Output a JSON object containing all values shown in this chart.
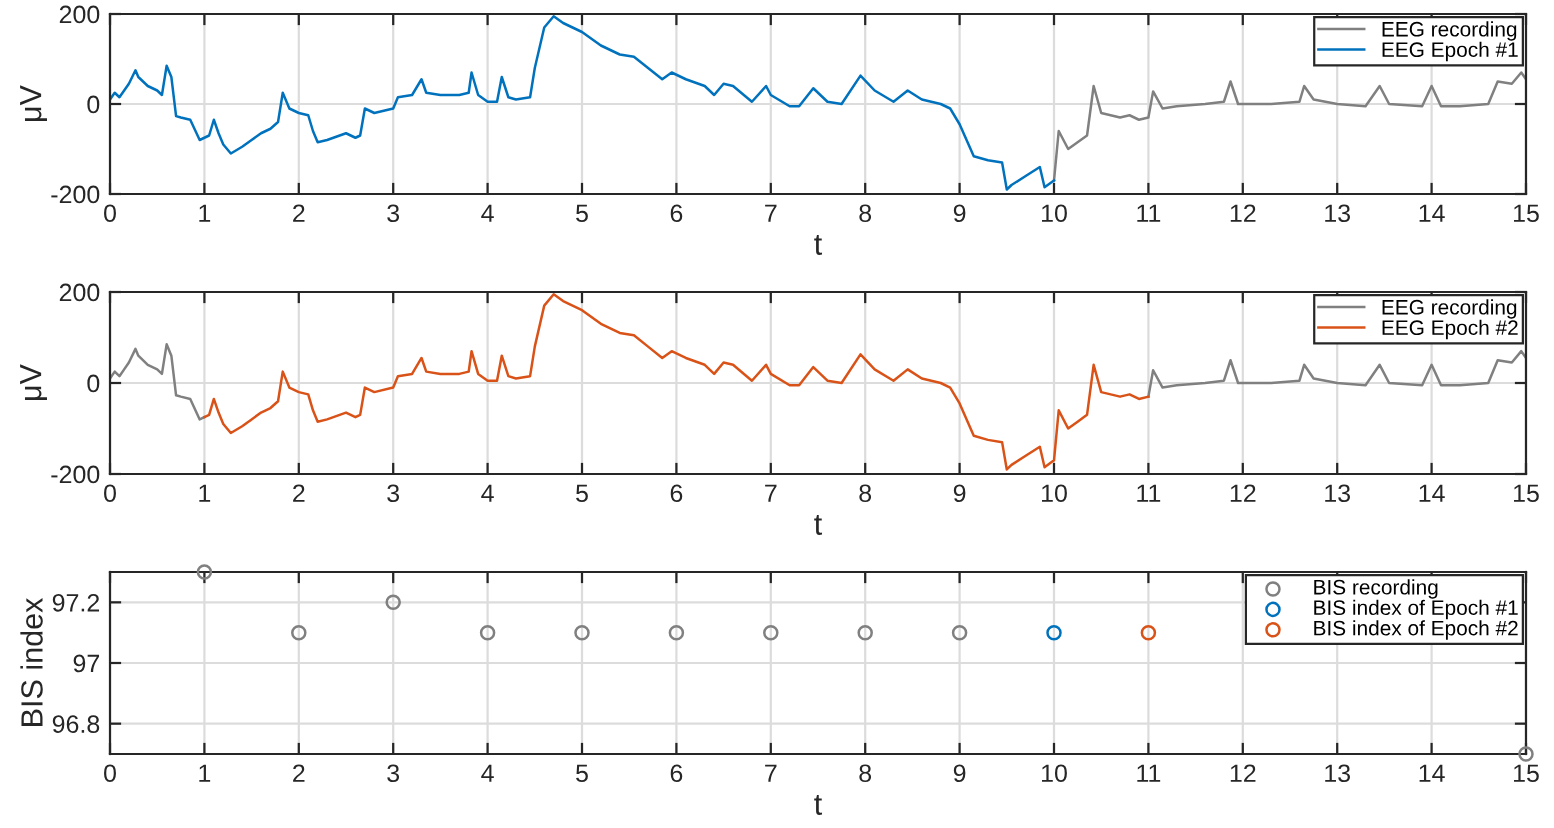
{
  "chart_data": [
    {
      "type": "line",
      "xlabel": "t",
      "ylabel": "μV",
      "xlim": [
        0,
        15
      ],
      "ylim": [
        -200,
        200
      ],
      "xticks": [
        0,
        1,
        2,
        3,
        4,
        5,
        6,
        7,
        8,
        9,
        10,
        11,
        12,
        13,
        14,
        15
      ],
      "yticks": [
        -200,
        0,
        200
      ],
      "grid": true,
      "legend": "top right",
      "series": [
        {
          "name": "EEG recording",
          "color": "#808080",
          "x": [
            10.0,
            10.05,
            10.15,
            10.25,
            10.35,
            10.42,
            10.5,
            10.7,
            10.8,
            10.9,
            11.0,
            11.05,
            11.15,
            11.3,
            11.6,
            11.8,
            11.87,
            11.95,
            12.3,
            12.6,
            12.65,
            12.75,
            13.0,
            13.3,
            13.45,
            13.55,
            13.9,
            14.0,
            14.1,
            14.3,
            14.6,
            14.7,
            14.85,
            14.95,
            15.0
          ],
          "values": [
            -170,
            -60,
            -100,
            -85,
            -70,
            40,
            -20,
            -30,
            -25,
            -35,
            -30,
            28,
            -10,
            -5,
            0,
            5,
            50,
            0,
            0,
            5,
            40,
            10,
            0,
            -5,
            40,
            0,
            -5,
            40,
            -5,
            -5,
            0,
            50,
            45,
            70,
            55
          ]
        },
        {
          "name": "EEG Epoch #1",
          "color": "#0072bd",
          "x": [
            0,
            0.05,
            0.1,
            0.15,
            0.2,
            0.27,
            0.3,
            0.4,
            0.5,
            0.55,
            0.6,
            0.65,
            0.7,
            0.75,
            0.85,
            0.95,
            1.0,
            1.05,
            1.1,
            1.15,
            1.2,
            1.28,
            1.4,
            1.5,
            1.6,
            1.7,
            1.78,
            1.83,
            1.9,
            2.0,
            2.1,
            2.15,
            2.2,
            2.3,
            2.5,
            2.6,
            2.65,
            2.7,
            2.8,
            3.0,
            3.05,
            3.2,
            3.3,
            3.35,
            3.5,
            3.7,
            3.8,
            3.83,
            3.9,
            4.0,
            4.1,
            4.15,
            4.22,
            4.3,
            4.45,
            4.5,
            4.6,
            4.7,
            4.8,
            5.0,
            5.2,
            5.4,
            5.55,
            5.7,
            5.85,
            5.95,
            6.1,
            6.3,
            6.4,
            6.5,
            6.6,
            6.8,
            6.95,
            7.0,
            7.2,
            7.3,
            7.45,
            7.6,
            7.75,
            7.95,
            8.1,
            8.3,
            8.45,
            8.6,
            8.8,
            8.9,
            9.0,
            9.15,
            9.3,
            9.45,
            9.5,
            9.55,
            9.7,
            9.85,
            9.9,
            10.0
          ],
          "values": [
            10,
            25,
            15,
            30,
            45,
            75,
            60,
            40,
            30,
            20,
            85,
            60,
            -27,
            -30,
            -35,
            -80,
            -75,
            -70,
            -35,
            -65,
            -90,
            -110,
            -95,
            -80,
            -65,
            -55,
            -40,
            25,
            -10,
            -20,
            -25,
            -60,
            -85,
            -80,
            -65,
            -75,
            -70,
            -10,
            -20,
            -10,
            15,
            20,
            55,
            25,
            20,
            20,
            25,
            70,
            20,
            5,
            5,
            60,
            15,
            10,
            15,
            80,
            170,
            195,
            180,
            160,
            130,
            110,
            105,
            80,
            55,
            70,
            55,
            40,
            20,
            45,
            40,
            5,
            40,
            20,
            -5,
            -5,
            35,
            5,
            0,
            63,
            30,
            5,
            30,
            10,
            0,
            -10,
            -45,
            -116,
            -125,
            -130,
            -190,
            -180,
            -160,
            -140,
            -185,
            -170
          ]
        }
      ]
    },
    {
      "type": "line",
      "xlabel": "t",
      "ylabel": "μV",
      "xlim": [
        0,
        15
      ],
      "ylim": [
        -200,
        200
      ],
      "xticks": [
        0,
        1,
        2,
        3,
        4,
        5,
        6,
        7,
        8,
        9,
        10,
        11,
        12,
        13,
        14,
        15
      ],
      "yticks": [
        -200,
        0,
        200
      ],
      "grid": true,
      "legend": "top right",
      "series": [
        {
          "name": "EEG recording",
          "color": "#808080",
          "x": [
            0,
            0.05,
            0.1,
            0.15,
            0.2,
            0.27,
            0.3,
            0.4,
            0.5,
            0.55,
            0.6,
            0.65,
            0.7,
            0.75,
            0.85,
            0.95,
            1.0,
            6.0,
            11.0,
            11.05,
            11.15,
            11.3,
            11.6,
            11.8,
            11.87,
            11.95,
            12.3,
            12.6,
            12.65,
            12.75,
            13.0,
            13.3,
            13.45,
            13.55,
            13.9,
            14.0,
            14.1,
            14.3,
            14.6,
            14.7,
            14.85,
            14.95,
            15.0
          ],
          "values": [
            10,
            25,
            15,
            30,
            45,
            75,
            60,
            40,
            30,
            20,
            85,
            60,
            -27,
            -30,
            -35,
            -80,
            -75,
            null,
            -30,
            28,
            -10,
            -5,
            0,
            5,
            50,
            0,
            0,
            5,
            40,
            10,
            0,
            -5,
            40,
            0,
            -5,
            40,
            -5,
            -5,
            0,
            50,
            45,
            70,
            55
          ]
        },
        {
          "name": "EEG Epoch #2",
          "color": "#d95319",
          "x": [
            1.0,
            1.05,
            1.1,
            1.15,
            1.2,
            1.28,
            1.4,
            1.5,
            1.6,
            1.7,
            1.78,
            1.83,
            1.9,
            2.0,
            2.1,
            2.15,
            2.2,
            2.3,
            2.5,
            2.6,
            2.65,
            2.7,
            2.8,
            3.0,
            3.05,
            3.2,
            3.3,
            3.35,
            3.5,
            3.7,
            3.8,
            3.83,
            3.9,
            4.0,
            4.1,
            4.15,
            4.22,
            4.3,
            4.45,
            4.5,
            4.6,
            4.7,
            4.8,
            5.0,
            5.2,
            5.4,
            5.55,
            5.7,
            5.85,
            5.95,
            6.1,
            6.3,
            6.4,
            6.5,
            6.6,
            6.8,
            6.95,
            7.0,
            7.2,
            7.3,
            7.45,
            7.6,
            7.75,
            7.95,
            8.1,
            8.3,
            8.45,
            8.6,
            8.8,
            8.9,
            9.0,
            9.15,
            9.3,
            9.45,
            9.5,
            9.55,
            9.7,
            9.85,
            9.9,
            10.0,
            10.05,
            10.15,
            10.25,
            10.35,
            10.42,
            10.5,
            10.7,
            10.8,
            10.9,
            11.0
          ],
          "values": [
            -75,
            -70,
            -35,
            -65,
            -90,
            -110,
            -95,
            -80,
            -65,
            -55,
            -40,
            25,
            -10,
            -20,
            -25,
            -60,
            -85,
            -80,
            -65,
            -75,
            -70,
            -10,
            -20,
            -10,
            15,
            20,
            55,
            25,
            20,
            20,
            25,
            70,
            20,
            5,
            5,
            60,
            15,
            10,
            15,
            80,
            170,
            195,
            180,
            160,
            130,
            110,
            105,
            80,
            55,
            70,
            55,
            40,
            20,
            45,
            40,
            5,
            40,
            20,
            -5,
            -5,
            35,
            5,
            0,
            63,
            30,
            5,
            30,
            10,
            0,
            -10,
            -45,
            -116,
            -125,
            -130,
            -190,
            -180,
            -160,
            -140,
            -185,
            -170,
            -60,
            -100,
            -85,
            -70,
            40,
            -20,
            -30,
            -25,
            -35,
            -30
          ]
        }
      ]
    },
    {
      "type": "scatter",
      "xlabel": "t",
      "ylabel": "BIS index",
      "xlim": [
        0,
        15
      ],
      "ylim": [
        96.7,
        97.3
      ],
      "xticks": [
        0,
        1,
        2,
        3,
        4,
        5,
        6,
        7,
        8,
        9,
        10,
        11,
        12,
        13,
        14,
        15
      ],
      "yticks": [
        96.8,
        97,
        97.2
      ],
      "grid": true,
      "legend": "top right",
      "marker": "circle",
      "series": [
        {
          "name": "BIS recording",
          "color": "#808080",
          "x": [
            1,
            2,
            3,
            4,
            5,
            6,
            7,
            8,
            9,
            15
          ],
          "values": [
            97.3,
            97.1,
            97.2,
            97.1,
            97.1,
            97.1,
            97.1,
            97.1,
            97.1,
            96.7
          ]
        },
        {
          "name": "BIS index of Epoch #1",
          "color": "#0072bd",
          "x": [
            10
          ],
          "values": [
            97.1
          ]
        },
        {
          "name": "BIS index of Epoch #2",
          "color": "#d95319",
          "x": [
            11
          ],
          "values": [
            97.1
          ]
        }
      ]
    }
  ]
}
